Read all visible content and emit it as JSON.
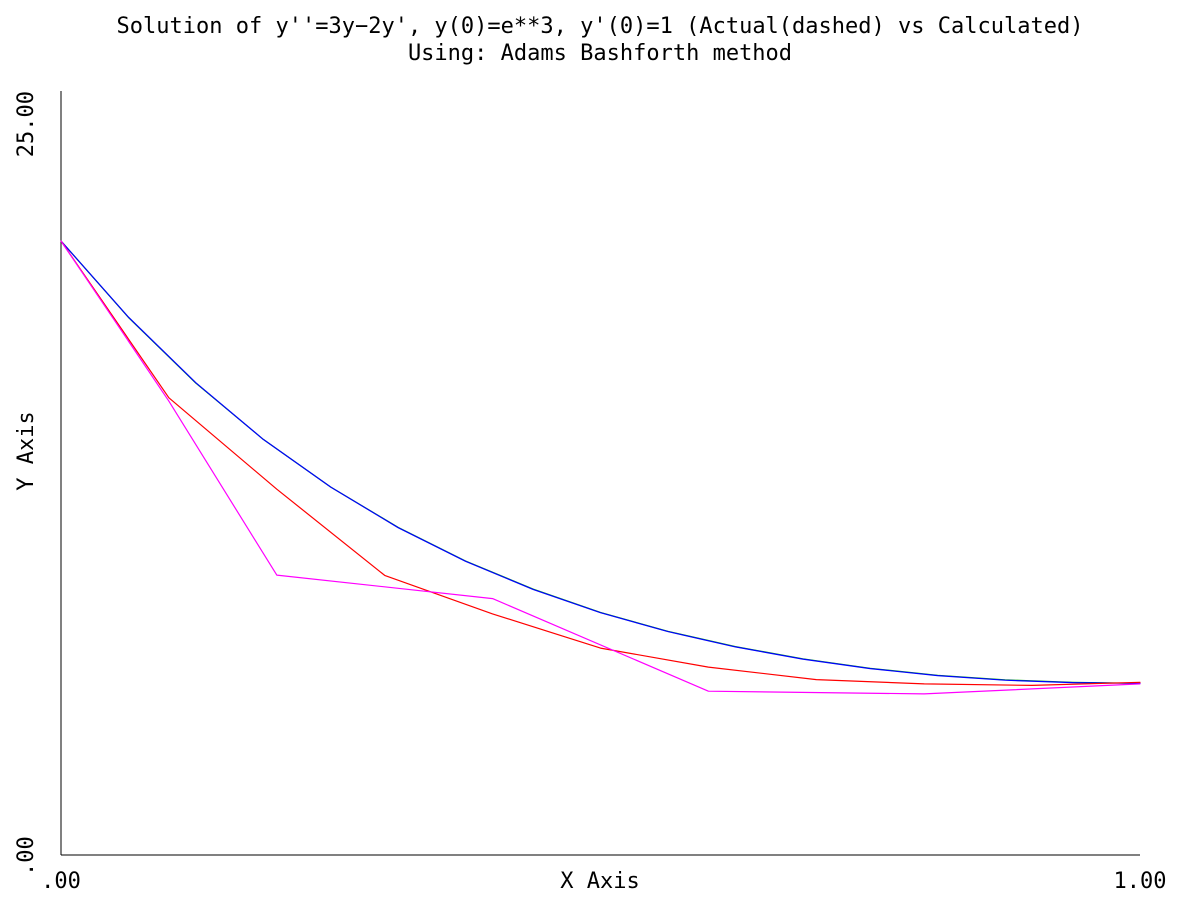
{
  "chart_data": {
    "type": "line",
    "title": "Solution of y''=3y−2y', y(0)=e**3, y'(0)=1 (Actual(dashed) vs Calculated)",
    "subtitle": "Using: Adams Bashforth method",
    "xlabel": "X Axis",
    "ylabel": "Y Axis",
    "xlim": [
      0,
      1
    ],
    "ylim": [
      0,
      25
    ],
    "x_tick_labels": [
      ".00",
      "1.00"
    ],
    "y_tick_labels": [
      ".00",
      "25.00"
    ],
    "grid": false,
    "series": [
      {
        "color": "#00aa00",
        "x": [
          0,
          0.0625,
          0.125,
          0.1875,
          0.25,
          0.3125,
          0.375,
          0.4375,
          0.5,
          0.5625,
          0.625,
          0.6875,
          0.75,
          0.8125,
          0.875,
          0.9375,
          1.0
        ],
        "values": [
          20.09,
          17.59,
          15.44,
          13.6,
          12.04,
          10.72,
          9.62,
          8.7,
          7.94,
          7.32,
          6.82,
          6.42,
          6.11,
          5.88,
          5.73,
          5.65,
          5.62
        ]
      },
      {
        "color": "#0000ff",
        "x": [
          0,
          0.0625,
          0.125,
          0.1875,
          0.25,
          0.3125,
          0.375,
          0.4375,
          0.5,
          0.5625,
          0.625,
          0.6875,
          0.75,
          0.8125,
          0.875,
          0.9375,
          1.0
        ],
        "values": [
          20.09,
          17.6,
          15.45,
          13.6,
          12.04,
          10.71,
          9.61,
          8.69,
          7.93,
          7.31,
          6.81,
          6.41,
          6.1,
          5.87,
          5.72,
          5.64,
          5.62
        ]
      },
      {
        "color": "#ff0000",
        "x": [
          0,
          0.1,
          0.2,
          0.3,
          0.4,
          0.5,
          0.6,
          0.7,
          0.8,
          0.9,
          1.0
        ],
        "values": [
          20.09,
          14.96,
          11.97,
          9.15,
          7.89,
          6.77,
          6.15,
          5.74,
          5.6,
          5.55,
          5.65
        ]
      },
      {
        "color": "#ff00ff",
        "x": [
          0,
          0.1,
          0.2,
          0.4,
          0.6,
          0.8,
          1.0
        ],
        "values": [
          20.09,
          14.85,
          9.16,
          8.39,
          5.36,
          5.27,
          5.6
        ]
      }
    ]
  }
}
